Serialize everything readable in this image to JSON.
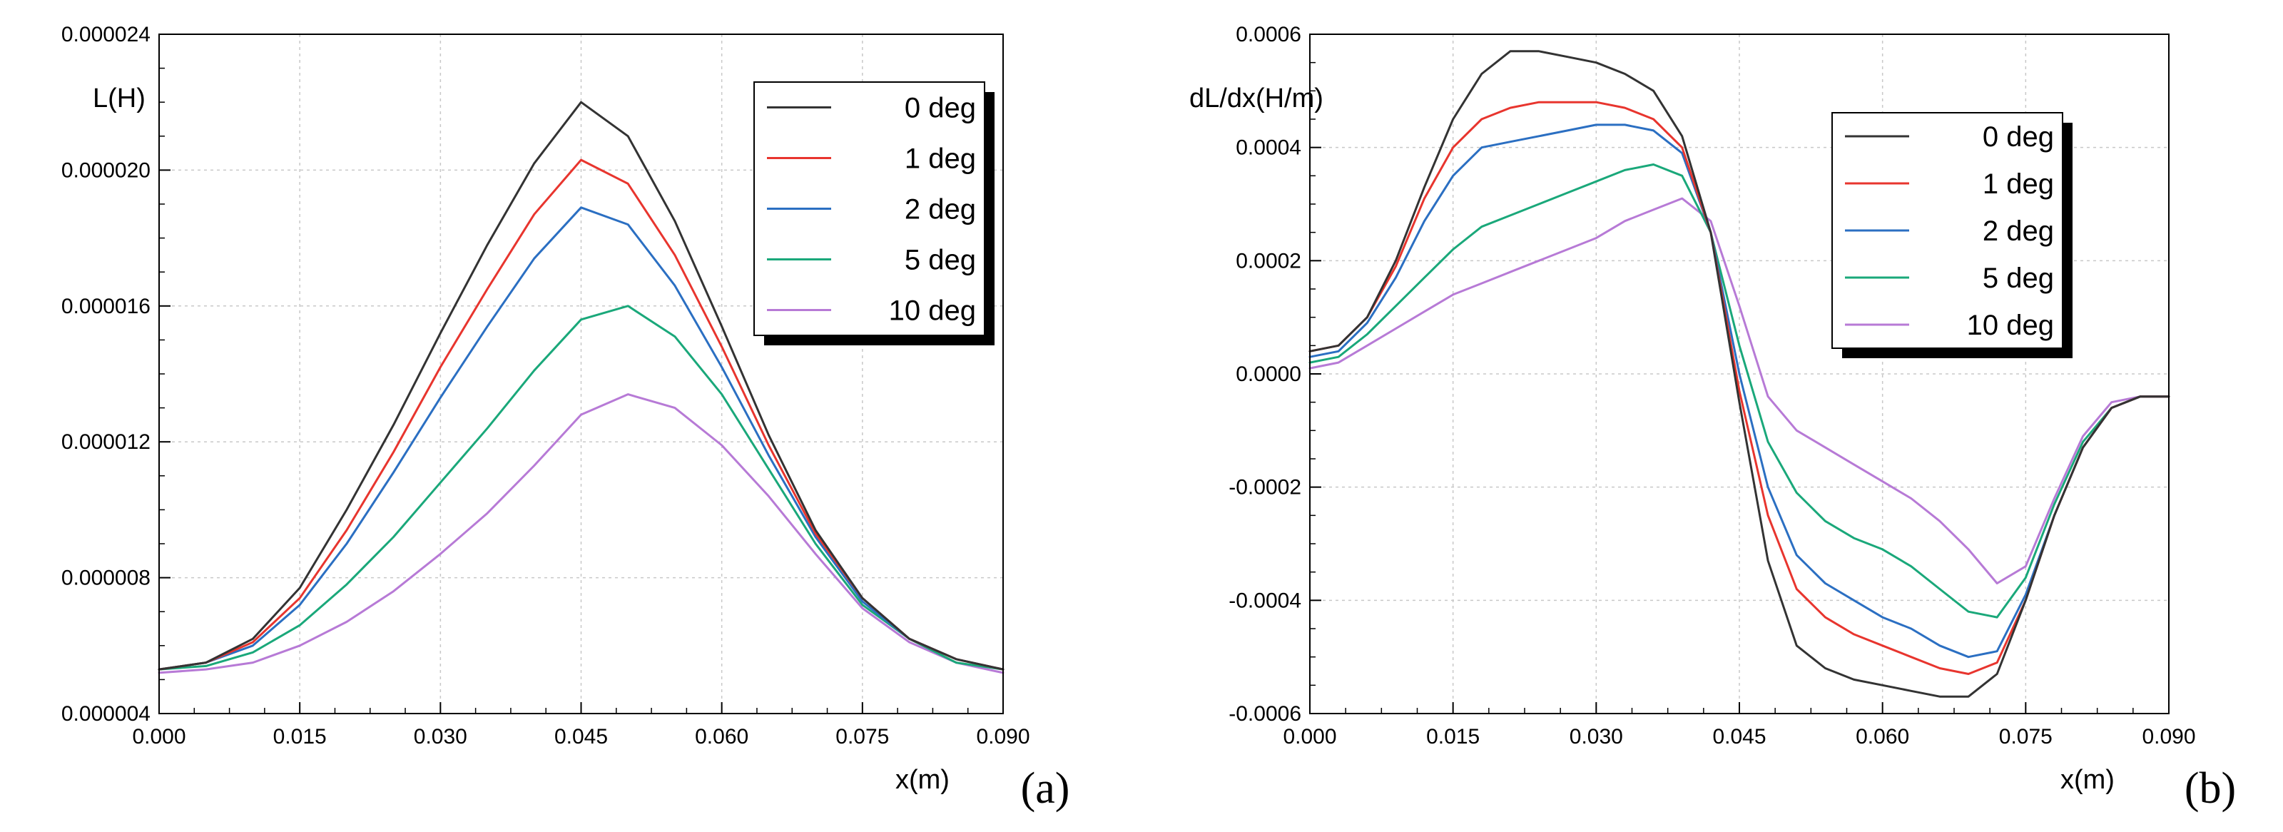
{
  "chart_data": [
    {
      "type": "line",
      "panel_label": "(a)",
      "title": "",
      "xlabel": "x(m)",
      "ylabel": "L(H)",
      "xlim": [
        0,
        0.09
      ],
      "ylim": [
        4e-06,
        2.4e-05
      ],
      "xticks": [
        "0.000",
        "0.015",
        "0.030",
        "0.045",
        "0.060",
        "0.075",
        "0.090"
      ],
      "yticks": [
        "0.000004",
        "0.000008",
        "0.000012",
        "0.000016",
        "0.000020",
        "0.000024"
      ],
      "grid": true,
      "legend_position": "top-right",
      "x": [
        0,
        0.005,
        0.01,
        0.015,
        0.02,
        0.025,
        0.03,
        0.035,
        0.04,
        0.045,
        0.05,
        0.055,
        0.06,
        0.065,
        0.07,
        0.075,
        0.08,
        0.085,
        0.09
      ],
      "series": [
        {
          "name": "0 deg",
          "color": "#333333",
          "values": [
            5.3e-06,
            5.5e-06,
            6.2e-06,
            7.7e-06,
            1e-05,
            1.25e-05,
            1.52e-05,
            1.78e-05,
            2.02e-05,
            2.2e-05,
            2.1e-05,
            1.85e-05,
            1.54e-05,
            1.22e-05,
            9.4e-06,
            7.4e-06,
            6.2e-06,
            5.6e-06,
            5.3e-06
          ]
        },
        {
          "name": "1 deg",
          "color": "#e8352e",
          "values": [
            5.3e-06,
            5.5e-06,
            6.1e-06,
            7.4e-06,
            9.4e-06,
            1.17e-05,
            1.42e-05,
            1.65e-05,
            1.87e-05,
            2.03e-05,
            1.96e-05,
            1.75e-05,
            1.48e-05,
            1.19e-05,
            9.3e-06,
            7.4e-06,
            6.2e-06,
            5.6e-06,
            5.3e-06
          ]
        },
        {
          "name": "2 deg",
          "color": "#2b6fc2",
          "values": [
            5.3e-06,
            5.5e-06,
            6e-06,
            7.2e-06,
            9e-06,
            1.11e-05,
            1.33e-05,
            1.54e-05,
            1.74e-05,
            1.89e-05,
            1.84e-05,
            1.66e-05,
            1.42e-05,
            1.16e-05,
            9.2e-06,
            7.3e-06,
            6.2e-06,
            5.6e-06,
            5.3e-06
          ]
        },
        {
          "name": "5 deg",
          "color": "#1aa87a",
          "values": [
            5.3e-06,
            5.4e-06,
            5.8e-06,
            6.6e-06,
            7.8e-06,
            9.2e-06,
            1.08e-05,
            1.24e-05,
            1.41e-05,
            1.56e-05,
            1.6e-05,
            1.51e-05,
            1.34e-05,
            1.12e-05,
            9e-06,
            7.2e-06,
            6.2e-06,
            5.5e-06,
            5.3e-06
          ]
        },
        {
          "name": "10 deg",
          "color": "#b77ad6",
          "values": [
            5.2e-06,
            5.3e-06,
            5.5e-06,
            6e-06,
            6.7e-06,
            7.6e-06,
            8.7e-06,
            9.9e-06,
            1.13e-05,
            1.28e-05,
            1.34e-05,
            1.3e-05,
            1.19e-05,
            1.04e-05,
            8.7e-06,
            7.1e-06,
            6.1e-06,
            5.5e-06,
            5.2e-06
          ]
        }
      ]
    },
    {
      "type": "line",
      "panel_label": "(b)",
      "title": "",
      "xlabel": "x(m)",
      "ylabel": "dL/dx(H/m)",
      "xlim": [
        0,
        0.09
      ],
      "ylim": [
        -0.0006,
        0.0006
      ],
      "xticks": [
        "0.000",
        "0.015",
        "0.030",
        "0.045",
        "0.060",
        "0.075",
        "0.090"
      ],
      "yticks": [
        "-0.0006",
        "-0.0004",
        "-0.0002",
        "0.0000",
        "0.0002",
        "0.0004",
        "0.0006"
      ],
      "grid": true,
      "legend_position": "top-right",
      "x": [
        0,
        0.003,
        0.006,
        0.009,
        0.012,
        0.015,
        0.018,
        0.021,
        0.024,
        0.027,
        0.03,
        0.033,
        0.036,
        0.039,
        0.042,
        0.045,
        0.048,
        0.051,
        0.054,
        0.057,
        0.06,
        0.063,
        0.066,
        0.069,
        0.072,
        0.075,
        0.078,
        0.081,
        0.084,
        0.087,
        0.09
      ],
      "series": [
        {
          "name": "0 deg",
          "color": "#333333",
          "values": [
            4e-05,
            5e-05,
            0.0001,
            0.0002,
            0.00033,
            0.00045,
            0.00053,
            0.00057,
            0.00057,
            0.00056,
            0.00055,
            0.00053,
            0.0005,
            0.00042,
            0.00025,
            -5e-05,
            -0.00033,
            -0.00048,
            -0.00052,
            -0.00054,
            -0.00055,
            -0.00056,
            -0.00057,
            -0.00057,
            -0.00053,
            -0.0004,
            -0.00025,
            -0.00013,
            -6e-05,
            -4e-05,
            -4e-05
          ]
        },
        {
          "name": "1 deg",
          "color": "#e8352e",
          "values": [
            4e-05,
            5e-05,
            0.0001,
            0.00019,
            0.00031,
            0.0004,
            0.00045,
            0.00047,
            0.00048,
            0.00048,
            0.00048,
            0.00047,
            0.00045,
            0.0004,
            0.00025,
            -3e-05,
            -0.00025,
            -0.00038,
            -0.00043,
            -0.00046,
            -0.00048,
            -0.0005,
            -0.00052,
            -0.00053,
            -0.00051,
            -0.0004,
            -0.00025,
            -0.00013,
            -6e-05,
            -4e-05,
            -4e-05
          ]
        },
        {
          "name": "2 deg",
          "color": "#2b6fc2",
          "values": [
            3e-05,
            4e-05,
            9e-05,
            0.00017,
            0.00027,
            0.00035,
            0.0004,
            0.00041,
            0.00042,
            0.00043,
            0.00044,
            0.00044,
            0.00043,
            0.00039,
            0.00025,
            0.0,
            -0.0002,
            -0.00032,
            -0.00037,
            -0.0004,
            -0.00043,
            -0.00045,
            -0.00048,
            -0.0005,
            -0.00049,
            -0.00039,
            -0.00025,
            -0.00013,
            -6e-05,
            -4e-05,
            -4e-05
          ]
        },
        {
          "name": "5 deg",
          "color": "#1aa87a",
          "values": [
            2e-05,
            3e-05,
            7e-05,
            0.00012,
            0.00017,
            0.00022,
            0.00026,
            0.00028,
            0.0003,
            0.00032,
            0.00034,
            0.00036,
            0.00037,
            0.00035,
            0.00025,
            5e-05,
            -0.00012,
            -0.00021,
            -0.00026,
            -0.00029,
            -0.00031,
            -0.00034,
            -0.00038,
            -0.00042,
            -0.00043,
            -0.00036,
            -0.00023,
            -0.00012,
            -6e-05,
            -4e-05,
            -4e-05
          ]
        },
        {
          "name": "10 deg",
          "color": "#b77ad6",
          "values": [
            1e-05,
            2e-05,
            5e-05,
            8e-05,
            0.00011,
            0.00014,
            0.00016,
            0.00018,
            0.0002,
            0.00022,
            0.00024,
            0.00027,
            0.00029,
            0.00031,
            0.00027,
            0.00012,
            -4e-05,
            -0.0001,
            -0.00013,
            -0.00016,
            -0.00019,
            -0.00022,
            -0.00026,
            -0.00031,
            -0.00037,
            -0.00034,
            -0.00022,
            -0.00011,
            -5e-05,
            -4e-05,
            -4e-05
          ]
        }
      ]
    }
  ]
}
